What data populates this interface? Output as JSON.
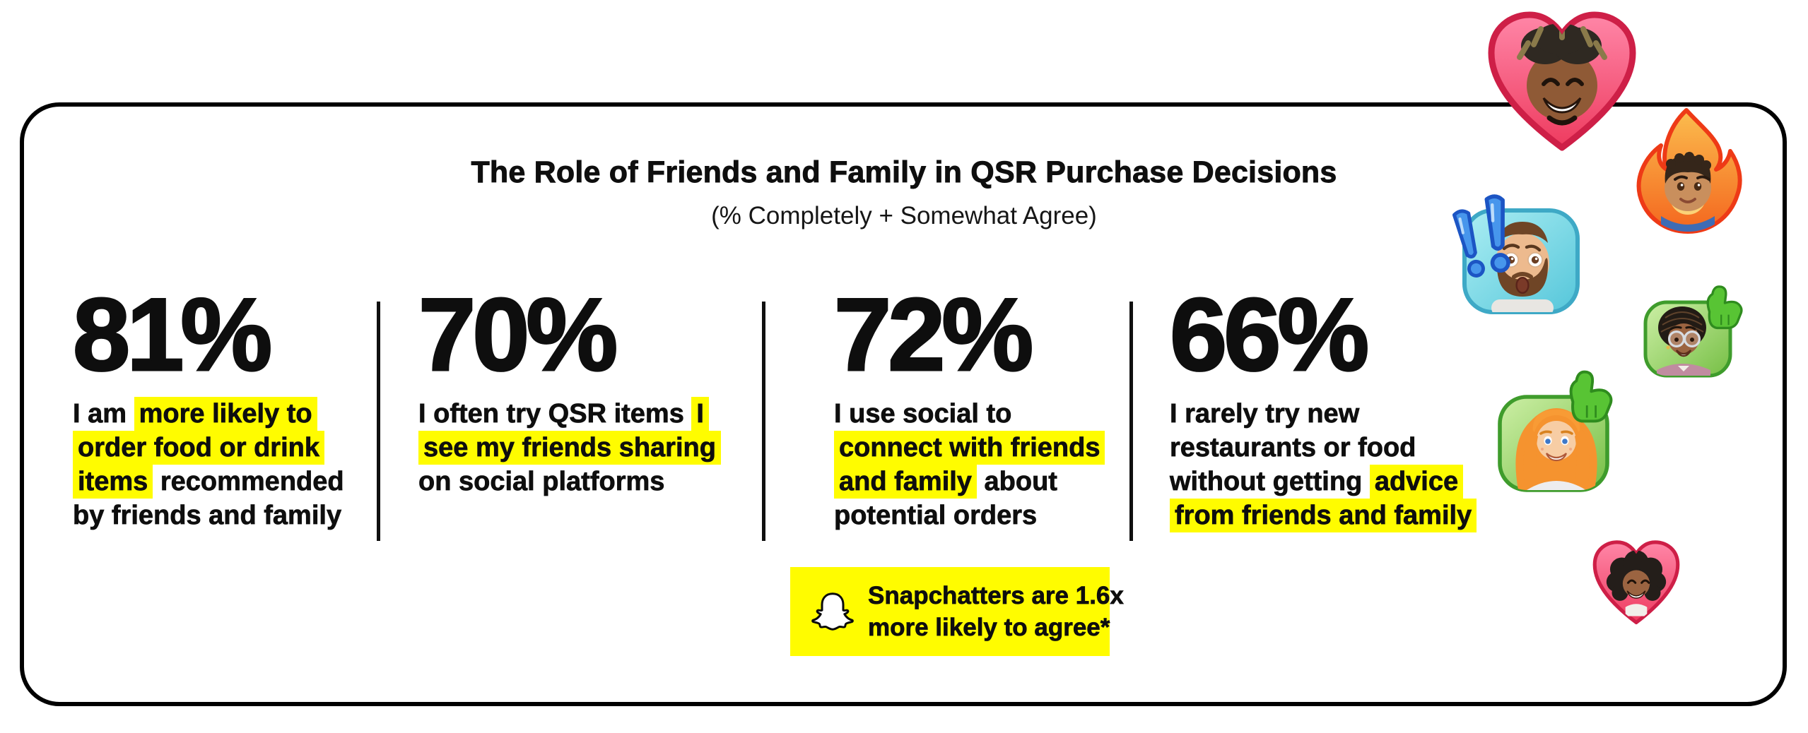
{
  "title": "The Role of Friends and Family in QSR Purchase Decisions",
  "subtitle": "(% Completely + Somewhat Agree)",
  "colors": {
    "highlight_yellow": "#FFFC00",
    "callout_yellow": "#FFFC00",
    "card_border": "#000000",
    "text": "#0e0e0e"
  },
  "stats": [
    {
      "value": "81%",
      "lines": [
        [
          {
            "t": "I am ",
            "h": false
          },
          {
            "t": "more likely to",
            "h": true
          }
        ],
        [
          {
            "t": "order food or drink",
            "h": true
          }
        ],
        [
          {
            "t": "items",
            "h": true
          },
          {
            "t": " recommended",
            "h": false
          }
        ],
        [
          {
            "t": "by friends and family",
            "h": false
          }
        ]
      ]
    },
    {
      "value": "70%",
      "lines": [
        [
          {
            "t": "I often try QSR items ",
            "h": false
          },
          {
            "t": "I",
            "h": true
          }
        ],
        [
          {
            "t": "see my friends sharing",
            "h": true
          }
        ],
        [
          {
            "t": "on social platforms",
            "h": false
          }
        ]
      ]
    },
    {
      "value": "72%",
      "lines": [
        [
          {
            "t": "I use social to",
            "h": false
          }
        ],
        [
          {
            "t": "connect with friends",
            "h": true
          }
        ],
        [
          {
            "t": "and family",
            "h": true
          },
          {
            "t": " about",
            "h": false
          }
        ],
        [
          {
            "t": "potential orders",
            "h": false
          }
        ]
      ]
    },
    {
      "value": "66%",
      "lines": [
        [
          {
            "t": "I rarely try new",
            "h": false
          }
        ],
        [
          {
            "t": "restaurants or food",
            "h": false
          }
        ],
        [
          {
            "t": "without getting ",
            "h": false
          },
          {
            "t": "advice",
            "h": true
          }
        ],
        [
          {
            "t": "from friends and family",
            "h": true
          }
        ]
      ]
    }
  ],
  "callout": {
    "icon": "snapchat-ghost",
    "lines": [
      "Snapchatters are 1.6x",
      "more likely to agree*"
    ]
  },
  "avatars": [
    {
      "name": "heart-man-avatar"
    },
    {
      "name": "fire-boy-avatar"
    },
    {
      "name": "exclamation-surprised-man-avatar"
    },
    {
      "name": "thumbs-up-glasses-woman-avatar"
    },
    {
      "name": "thumbs-up-redhead-woman-avatar"
    },
    {
      "name": "heart-curly-woman-avatar"
    }
  ],
  "chart_data": {
    "type": "table",
    "title": "The Role of Friends and Family in QSR Purchase Decisions",
    "subtitle": "(% Completely + Somewhat Agree)",
    "unit": "%",
    "categories": [
      "I am more likely to order food or drink items recommended by friends and family",
      "I often try QSR items I see my friends sharing on social platforms",
      "I use social to connect with friends and family about potential orders",
      "I rarely try new restaurants or food without getting advice from friends and family"
    ],
    "values": [
      81,
      70,
      72,
      66
    ],
    "annotation": "Snapchatters are 1.6x more likely to agree*"
  }
}
